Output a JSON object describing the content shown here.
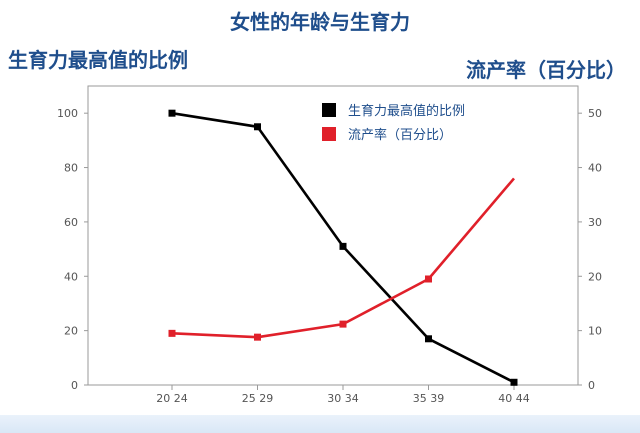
{
  "chart_data": {
    "type": "line",
    "title": "女性的年龄与生育力",
    "ylabel_left": "生育力最高值的比例",
    "ylabel_right": "流产率（百分比）",
    "categories": [
      "20-24",
      "25-29",
      "30-34",
      "35-39",
      "40-44"
    ],
    "category_labels": [
      "20 24",
      "25 29",
      "30 34",
      "35 39",
      "40 44"
    ],
    "left_axis": {
      "ylim": [
        0,
        110
      ],
      "ticks": [
        "0",
        "20",
        "40",
        "60",
        "80",
        "100"
      ]
    },
    "right_axis": {
      "ylim": [
        0,
        55
      ],
      "ticks": [
        "0",
        "10",
        "20",
        "30",
        "40",
        "50"
      ]
    },
    "series": [
      {
        "name": "生育力最高值的比例",
        "axis": "left",
        "color": "#000000",
        "marker": "square",
        "values": [
          100,
          95,
          51,
          17,
          1
        ]
      },
      {
        "name": "流产率（百分比）",
        "axis": "right",
        "color": "#e0202a",
        "marker": "square",
        "values": [
          9.5,
          8.8,
          11.2,
          19.5,
          38
        ]
      }
    ],
    "grid": false,
    "legend_position": "top-right"
  }
}
